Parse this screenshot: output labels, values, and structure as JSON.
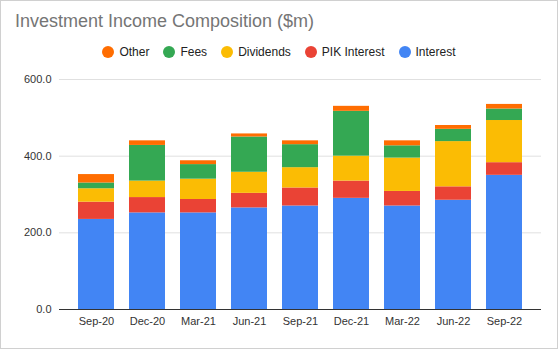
{
  "chart_data": {
    "type": "bar",
    "title": "Investment Income Composition ($m)",
    "stacked": true,
    "grid": true,
    "legend": "top",
    "categories": [
      "Sep-20",
      "Dec-20",
      "Mar-21",
      "Jun-21",
      "Sep-21",
      "Dec-21",
      "Mar-22",
      "Jun-22",
      "Sep-22"
    ],
    "series": [
      {
        "name": "Interest",
        "color": "#4285f4",
        "values": [
          235,
          252,
          252,
          265,
          270,
          290,
          270,
          285,
          350
        ]
      },
      {
        "name": "PIK Interest",
        "color": "#ea4335",
        "values": [
          45,
          40,
          35,
          38,
          47,
          45,
          38,
          35,
          33
        ]
      },
      {
        "name": "Dividends",
        "color": "#fbbc04",
        "values": [
          35,
          43,
          53,
          55,
          53,
          65,
          87,
          118,
          110
        ]
      },
      {
        "name": "Fees",
        "color": "#34a853",
        "values": [
          15,
          93,
          38,
          92,
          60,
          117,
          32,
          32,
          30
        ]
      },
      {
        "name": "Other",
        "color": "#ff6d01",
        "values": [
          22,
          12,
          10,
          8,
          10,
          13,
          13,
          10,
          12
        ]
      }
    ],
    "ylim": [
      0,
      600
    ],
    "yticks": [
      {
        "value": 0,
        "label": "0.0"
      },
      {
        "value": 200,
        "label": "200.0"
      },
      {
        "value": 400,
        "label": "400.0"
      },
      {
        "value": 600,
        "label": "600.0"
      }
    ]
  }
}
